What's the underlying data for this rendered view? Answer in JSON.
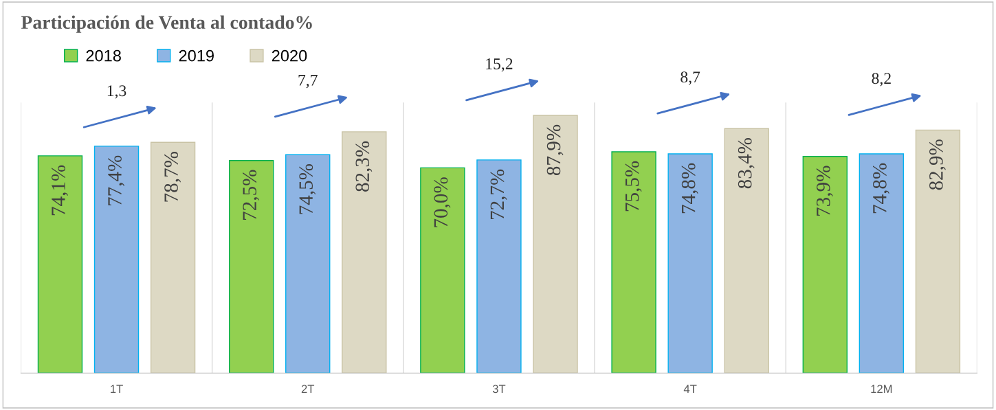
{
  "chart_data": {
    "type": "bar",
    "title": "Participación de Venta al contado%",
    "categories": [
      "1T",
      "2T",
      "3T",
      "4T",
      "12M"
    ],
    "series": [
      {
        "name": "2018",
        "color": "#92d050",
        "values": [
          74.1,
          72.5,
          70.0,
          75.5,
          73.9
        ],
        "value_labels": [
          "74,1%",
          "72,5%",
          "70,0%",
          "75,5%",
          "73,9%"
        ]
      },
      {
        "name": "2019",
        "color": "#8eb4e3",
        "values": [
          77.4,
          74.5,
          72.7,
          74.8,
          74.8
        ],
        "value_labels": [
          "77,4%",
          "74,5%",
          "72,7%",
          "74,8%",
          "74,8%"
        ]
      },
      {
        "name": "2020",
        "color": "#ddd9c4",
        "values": [
          78.7,
          82.3,
          87.9,
          83.4,
          82.9
        ],
        "value_labels": [
          "78,7%",
          "82,3%",
          "87,9%",
          "83,4%",
          "82,9%"
        ]
      }
    ],
    "tick_labels": "x",
    "legend": "top left",
    "annotations": [
      "1,3",
      "7,7",
      "15,2",
      "8,7",
      "8,2"
    ]
  }
}
